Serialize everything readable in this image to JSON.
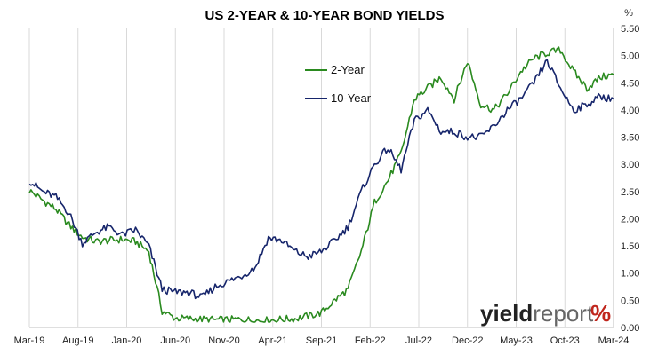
{
  "chart_data": {
    "type": "line",
    "title": "US 2-YEAR & 10-YEAR BOND YIELDS",
    "y_unit": "%",
    "ylim": [
      0,
      5.5
    ],
    "y_ticks": [
      "0.00",
      "0.50",
      "1.00",
      "1.50",
      "2.00",
      "2.50",
      "3.00",
      "3.50",
      "4.00",
      "4.50",
      "5.00",
      "5.50"
    ],
    "y_tick_values": [
      0,
      0.5,
      1,
      1.5,
      2,
      2.5,
      3,
      3.5,
      4,
      4.5,
      5,
      5.5
    ],
    "x_ticks": [
      "Mar-19",
      "Aug-19",
      "Jan-20",
      "Jun-20",
      "Nov-20",
      "Apr-21",
      "Sep-21",
      "Feb-22",
      "Jul-22",
      "Dec-22",
      "May-23",
      "Oct-23",
      "Mar-24"
    ],
    "grid": "vertical",
    "legend_position": "top-center",
    "series": [
      {
        "name": "2-Year",
        "color": "#2a8a1f",
        "values": [
          2.52,
          2.34,
          2.18,
          1.88,
          1.66,
          1.58,
          1.6,
          1.62,
          1.58,
          1.4,
          0.3,
          0.17,
          0.16,
          0.15,
          0.14,
          0.14,
          0.15,
          0.13,
          0.13,
          0.15,
          0.16,
          0.21,
          0.27,
          0.5,
          0.7,
          1.4,
          2.3,
          2.7,
          3.2,
          4.2,
          4.4,
          4.6,
          4.2,
          4.9,
          4.1,
          4.0,
          4.3,
          4.7,
          4.95,
          5.05,
          5.1,
          4.7,
          4.4,
          4.6,
          4.65
        ]
      },
      {
        "name": "10-Year",
        "color": "#16256b",
        "values": [
          2.7,
          2.5,
          2.4,
          2.1,
          1.55,
          1.75,
          1.85,
          1.7,
          1.8,
          1.5,
          0.7,
          0.65,
          0.65,
          0.55,
          0.75,
          0.85,
          0.95,
          1.1,
          1.65,
          1.6,
          1.4,
          1.3,
          1.4,
          1.6,
          1.85,
          2.5,
          3.0,
          3.3,
          2.9,
          3.8,
          4.0,
          3.6,
          3.6,
          3.5,
          3.5,
          3.7,
          4.0,
          4.2,
          4.5,
          4.9,
          4.4,
          4.0,
          4.1,
          4.25,
          4.2
        ]
      }
    ]
  }
}
